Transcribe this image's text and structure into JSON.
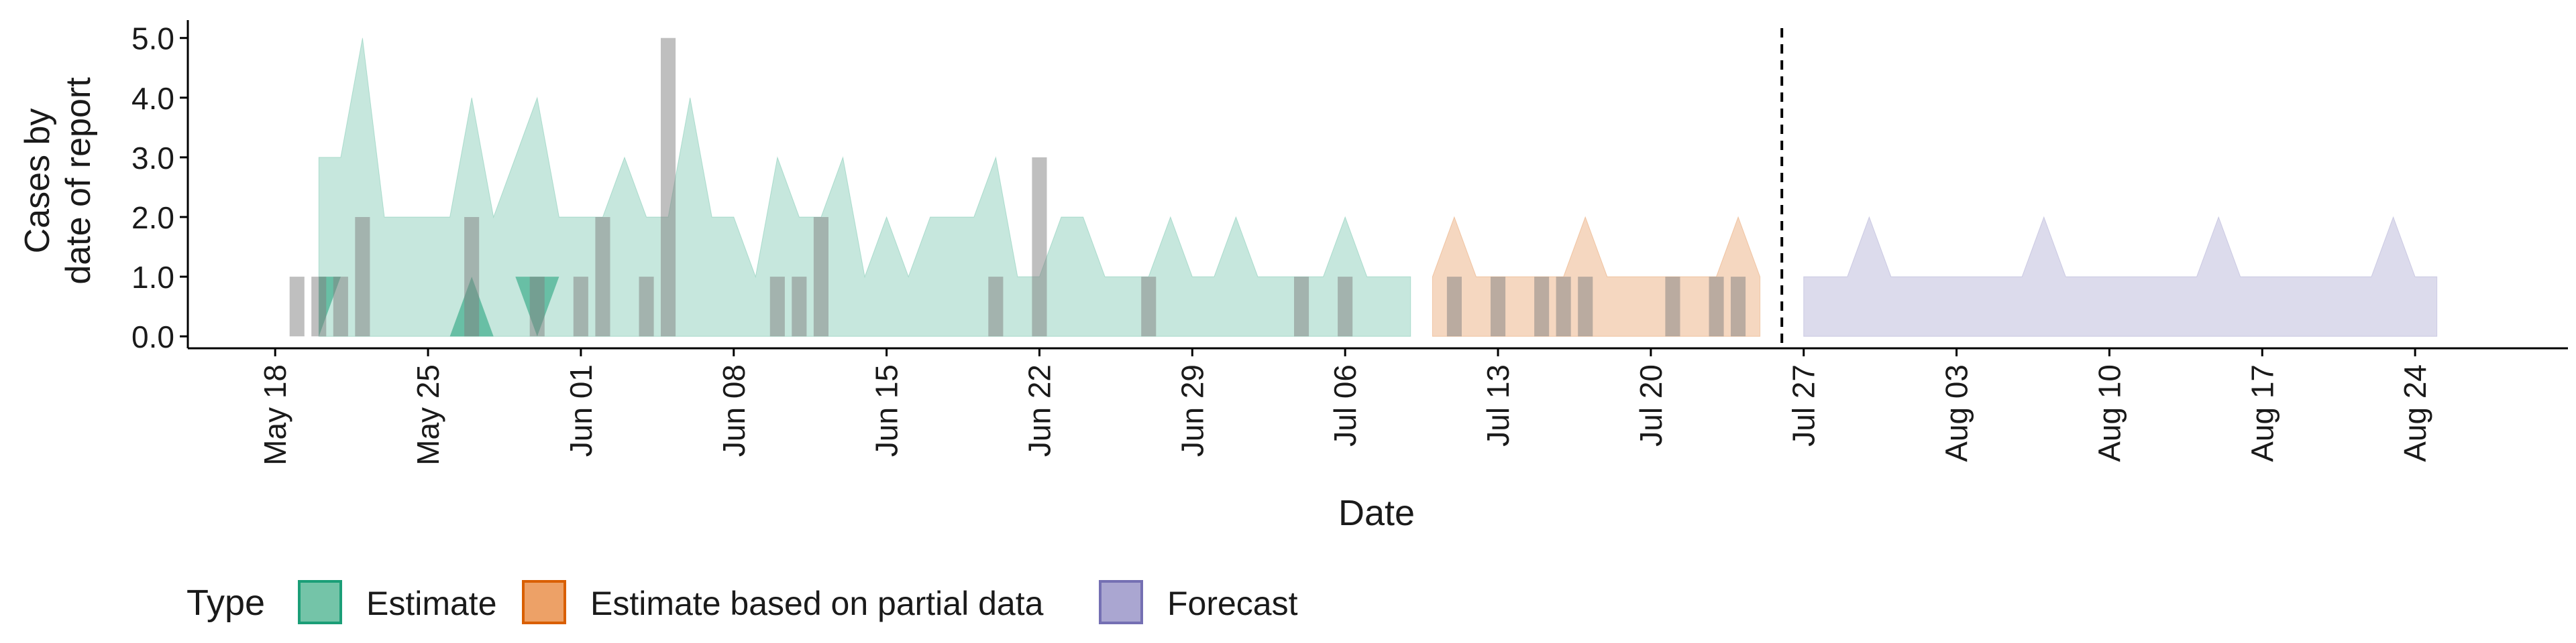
{
  "chart_data": {
    "type": "area",
    "title": "",
    "xlabel": "Date",
    "ylabel_lines": [
      "Cases by",
      "date of report"
    ],
    "ylim": [
      -0.2,
      5.3
    ],
    "x_range": [
      "2020-05-14",
      "2020-08-31"
    ],
    "y_ticks": [
      0,
      1,
      2,
      3,
      4,
      5
    ],
    "y_tick_labels": [
      "0.0",
      "1.0",
      "2.0",
      "3.0",
      "4.0",
      "5.0"
    ],
    "x_ticks": [
      "2020-05-18",
      "2020-05-25",
      "2020-06-01",
      "2020-06-08",
      "2020-06-15",
      "2020-06-22",
      "2020-06-29",
      "2020-07-06",
      "2020-07-13",
      "2020-07-20",
      "2020-07-27",
      "2020-08-03",
      "2020-08-10",
      "2020-08-17",
      "2020-08-24"
    ],
    "x_tick_labels": [
      "May 18",
      "May 25",
      "Jun 01",
      "Jun 08",
      "Jun 15",
      "Jun 22",
      "Jun 29",
      "Jul 06",
      "Jul 13",
      "Jul 20",
      "Jul 27",
      "Aug 03",
      "Aug 10",
      "Aug 17",
      "Aug 24"
    ],
    "forecast_date": "2020-07-26",
    "grid": false,
    "legend": {
      "placement": "bottom-left",
      "title": "Type",
      "entries": [
        {
          "label": "Estimate",
          "fill": "#74c4a8",
          "stroke": "#1b9e77"
        },
        {
          "label": "Estimate based on partial data",
          "fill": "#eda167",
          "stroke": "#d95f02"
        },
        {
          "label": "Forecast",
          "fill": "#aaa6d1",
          "stroke": "#7570b3"
        }
      ]
    },
    "colors": {
      "estimate": "#1b9e77",
      "partial": "#d95f02",
      "forecast": "#7570b3",
      "observed_bar": "#808080"
    },
    "series": [
      {
        "type_key": "estimate",
        "start": "2020-05-20",
        "lower50": [
          0,
          1,
          1,
          1,
          0,
          0,
          0,
          0,
          0,
          1,
          0,
          1,
          1,
          0,
          0,
          0,
          0,
          0,
          1,
          0,
          0,
          1,
          0,
          0,
          0,
          0,
          0,
          1,
          0,
          1,
          1,
          1,
          0,
          0,
          0,
          0,
          0,
          0,
          0,
          0,
          1,
          0,
          0,
          0,
          0,
          0,
          0,
          0,
          0,
          0,
          0
        ],
        "upper50": [
          1,
          1,
          1,
          1,
          0,
          0,
          0,
          1,
          0,
          1,
          1,
          1,
          1,
          0,
          0,
          0,
          0,
          0,
          1,
          0,
          0,
          1,
          0,
          0,
          0,
          0,
          0,
          1,
          0,
          1,
          1,
          1,
          0,
          0,
          0,
          0,
          0,
          0,
          0,
          0,
          1,
          0,
          0,
          0,
          0,
          0,
          0,
          0,
          0,
          0,
          0
        ],
        "lower90": [
          0,
          0,
          0,
          0,
          0,
          0,
          0,
          0,
          0,
          0,
          0,
          0,
          0,
          0,
          0,
          0,
          0,
          0,
          0,
          0,
          0,
          0,
          0,
          0,
          0,
          0,
          0,
          0,
          0,
          0,
          0,
          0,
          0,
          0,
          0,
          0,
          0,
          0,
          0,
          0,
          0,
          0,
          0,
          0,
          0,
          0,
          0,
          0,
          0,
          0,
          0
        ],
        "upper90": [
          3,
          3,
          5,
          2,
          2,
          2,
          2,
          4,
          2,
          3,
          4,
          2,
          2,
          2,
          3,
          2,
          2,
          4,
          2,
          2,
          1,
          3,
          2,
          2,
          3,
          1,
          2,
          1,
          2,
          2,
          2,
          3,
          1,
          1,
          2,
          2,
          1,
          1,
          1,
          2,
          1,
          1,
          2,
          1,
          1,
          1,
          1,
          2,
          1,
          1,
          1
        ]
      },
      {
        "type_key": "partial",
        "start": "2020-07-10",
        "lower50": [
          0,
          0,
          0,
          0,
          0,
          0,
          0,
          0,
          0,
          0,
          0,
          0,
          0,
          0,
          0,
          0
        ],
        "upper50": [
          0,
          0,
          0,
          0,
          0,
          0,
          0,
          0,
          0,
          0,
          0,
          0,
          0,
          0,
          0,
          0
        ],
        "lower90": [
          0,
          0,
          0,
          0,
          0,
          0,
          0,
          0,
          0,
          0,
          0,
          0,
          0,
          0,
          0,
          0
        ],
        "upper90": [
          1,
          2,
          1,
          1,
          1,
          1,
          1,
          2,
          1,
          1,
          1,
          1,
          1,
          1,
          2,
          1
        ]
      },
      {
        "type_key": "forecast",
        "start": "2020-07-27",
        "lower50": [],
        "upper50": [],
        "lower90": [
          0,
          0,
          0,
          0,
          0,
          0,
          0,
          0,
          0,
          0,
          0,
          0,
          0,
          0,
          0,
          0,
          0,
          0,
          0,
          0,
          0,
          0,
          0,
          0,
          0,
          0,
          0,
          0,
          0,
          0
        ],
        "upper90": [
          1,
          1,
          1,
          2,
          1,
          1,
          1,
          1,
          1,
          1,
          1,
          2,
          1,
          1,
          1,
          1,
          1,
          1,
          1,
          2,
          1,
          1,
          1,
          1,
          1,
          1,
          1,
          2,
          1,
          1
        ]
      }
    ],
    "observed_cases": [
      {
        "date": "2020-05-19",
        "value": 1
      },
      {
        "date": "2020-05-20",
        "value": 1
      },
      {
        "date": "2020-05-21",
        "value": 1
      },
      {
        "date": "2020-05-22",
        "value": 2
      },
      {
        "date": "2020-05-27",
        "value": 2
      },
      {
        "date": "2020-05-30",
        "value": 1
      },
      {
        "date": "2020-06-01",
        "value": 1
      },
      {
        "date": "2020-06-02",
        "value": 2
      },
      {
        "date": "2020-06-04",
        "value": 1
      },
      {
        "date": "2020-06-05",
        "value": 5
      },
      {
        "date": "2020-06-10",
        "value": 1
      },
      {
        "date": "2020-06-11",
        "value": 1
      },
      {
        "date": "2020-06-12",
        "value": 2
      },
      {
        "date": "2020-06-20",
        "value": 1
      },
      {
        "date": "2020-06-22",
        "value": 3
      },
      {
        "date": "2020-06-27",
        "value": 1
      },
      {
        "date": "2020-07-04",
        "value": 1
      },
      {
        "date": "2020-07-06",
        "value": 1
      },
      {
        "date": "2020-07-11",
        "value": 1
      },
      {
        "date": "2020-07-13",
        "value": 1
      },
      {
        "date": "2020-07-15",
        "value": 1
      },
      {
        "date": "2020-07-16",
        "value": 1
      },
      {
        "date": "2020-07-17",
        "value": 1
      },
      {
        "date": "2020-07-21",
        "value": 1
      },
      {
        "date": "2020-07-23",
        "value": 1
      },
      {
        "date": "2020-07-24",
        "value": 1
      }
    ]
  }
}
